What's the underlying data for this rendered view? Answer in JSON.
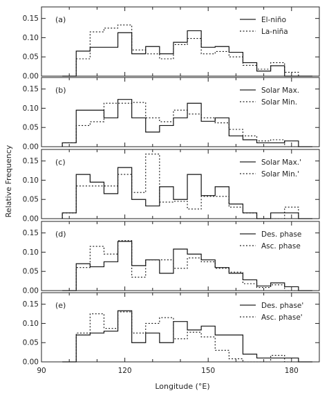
{
  "chart_data": {
    "type": "step-histogram",
    "xlabel": "Longitude (°E)",
    "ylabel": "Relative Frequency",
    "xlim": [
      90,
      190
    ],
    "x_ticks": [
      90,
      120,
      150,
      180
    ],
    "ylim": [
      0,
      0.18
    ],
    "y_ticks": [
      0.0,
      0.05,
      0.1,
      0.15
    ],
    "y_tick_labels": [
      "0.00",
      "0.05",
      "0.10",
      "0.15"
    ],
    "grid": false,
    "legend_placement": "top-right",
    "bin_edges": [
      97.5,
      102.5,
      107.5,
      112.5,
      117.5,
      122.5,
      127.5,
      132.5,
      137.5,
      142.5,
      147.5,
      152.5,
      157.5,
      162.5,
      167.5,
      172.5,
      177.5,
      182.5,
      187.5
    ],
    "panels": [
      {
        "tag": "(a)",
        "series": [
          {
            "name": "El-niño",
            "style": "solid",
            "values": [
              0.0,
              0.065,
              0.075,
              0.075,
              0.113,
              0.058,
              0.077,
              0.058,
              0.088,
              0.118,
              0.075,
              0.077,
              0.062,
              0.035,
              0.013,
              0.027,
              0.0,
              0.0
            ]
          },
          {
            "name": "La-niña",
            "style": "dotted",
            "values": [
              0.0,
              0.045,
              0.115,
              0.125,
              0.133,
              0.068,
              0.058,
              0.045,
              0.082,
              0.098,
              0.058,
              0.064,
              0.05,
              0.028,
              0.018,
              0.035,
              0.01,
              0.0
            ]
          }
        ]
      },
      {
        "tag": "(b)",
        "series": [
          {
            "name": "Solar Max.",
            "style": "solid",
            "values": [
              0.01,
              0.095,
              0.095,
              0.075,
              0.123,
              0.075,
              0.038,
              0.055,
              0.075,
              0.113,
              0.066,
              0.075,
              0.028,
              0.018,
              0.01,
              0.01,
              0.015,
              0.0
            ]
          },
          {
            "name": "Solar Min.",
            "style": "dotted",
            "values": [
              0.01,
              0.055,
              0.065,
              0.113,
              0.113,
              0.115,
              0.075,
              0.065,
              0.095,
              0.085,
              0.075,
              0.062,
              0.045,
              0.028,
              0.015,
              0.018,
              0.0,
              0.0
            ]
          }
        ]
      },
      {
        "tag": "(c)",
        "series": [
          {
            "name": "Solar Max.'",
            "style": "solid",
            "values": [
              0.015,
              0.115,
              0.095,
              0.065,
              0.133,
              0.05,
              0.033,
              0.083,
              0.05,
              0.115,
              0.06,
              0.083,
              0.038,
              0.015,
              0.0,
              0.015,
              0.015,
              0.0
            ]
          },
          {
            "name": "Solar Min.'",
            "style": "dotted",
            "values": [
              0.015,
              0.085,
              0.085,
              0.085,
              0.115,
              0.068,
              0.168,
              0.043,
              0.045,
              0.025,
              0.058,
              0.058,
              0.03,
              0.015,
              0.0,
              0.0,
              0.03,
              0.0
            ]
          }
        ]
      },
      {
        "tag": "(d)",
        "series": [
          {
            "name": "Des. phase",
            "style": "solid",
            "values": [
              0.0,
              0.07,
              0.062,
              0.075,
              0.128,
              0.065,
              0.08,
              0.045,
              0.108,
              0.095,
              0.08,
              0.06,
              0.045,
              0.028,
              0.012,
              0.02,
              0.01,
              0.0
            ]
          },
          {
            "name": "Asc. phase",
            "style": "dotted",
            "values": [
              0.0,
              0.06,
              0.115,
              0.095,
              0.13,
              0.035,
              0.08,
              0.08,
              0.058,
              0.085,
              0.075,
              0.058,
              0.048,
              0.018,
              0.008,
              0.015,
              0.0,
              0.0
            ]
          }
        ]
      },
      {
        "tag": "(e)",
        "series": [
          {
            "name": "Des. phase'",
            "style": "solid",
            "values": [
              0.0,
              0.07,
              0.075,
              0.08,
              0.133,
              0.05,
              0.075,
              0.05,
              0.105,
              0.083,
              0.093,
              0.07,
              0.07,
              0.02,
              0.01,
              0.01,
              0.01,
              0.0
            ]
          },
          {
            "name": "Asc. phase'",
            "style": "dotted",
            "values": [
              0.0,
              0.075,
              0.125,
              0.087,
              0.13,
              0.075,
              0.1,
              0.115,
              0.06,
              0.077,
              0.065,
              0.03,
              0.008,
              0.0,
              0.0,
              0.017,
              0.0,
              0.0
            ]
          }
        ]
      }
    ]
  }
}
